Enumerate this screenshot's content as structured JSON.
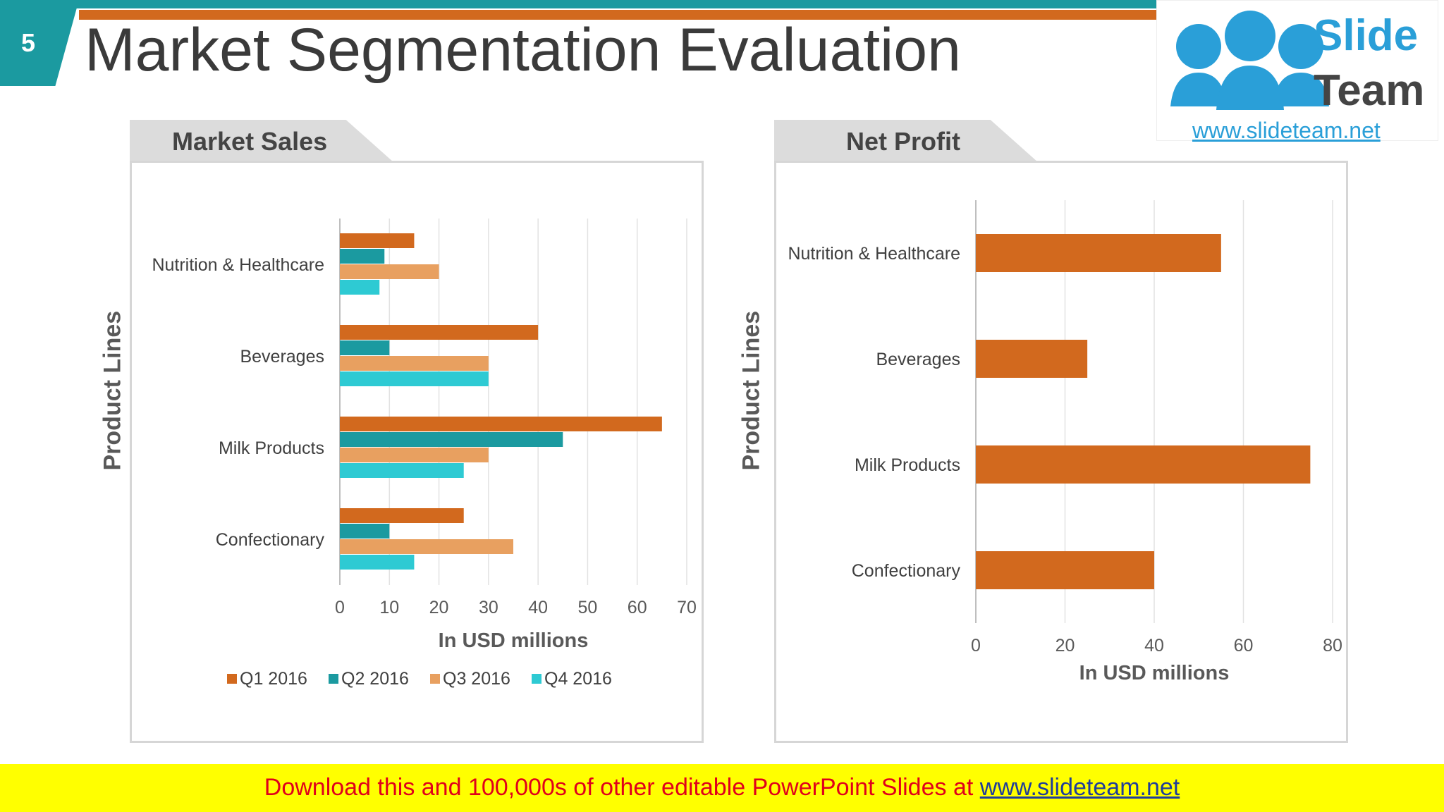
{
  "slide": {
    "number": "5",
    "title": "Market Segmentation Evaluation"
  },
  "logo": {
    "line1": "Slide",
    "line2": "Team",
    "url": "www.slideteam.net"
  },
  "colors": {
    "teal": "#1b9aa0",
    "orange": "#d2691e",
    "q1": "#d2691e",
    "q2": "#1b9aa0",
    "q3": "#e8a060",
    "q4": "#2ecad3"
  },
  "chart_data": [
    {
      "type": "bar",
      "orientation": "horizontal",
      "title": "Market Sales",
      "ylabel": "Product Lines",
      "xlabel": "In USD millions",
      "categories": [
        "Nutrition & Healthcare",
        "Beverages",
        "Milk Products",
        "Confectionary"
      ],
      "series": [
        {
          "name": "Q1 2016",
          "values": [
            15,
            40,
            65,
            25
          ]
        },
        {
          "name": "Q2 2016",
          "values": [
            9,
            10,
            45,
            10
          ]
        },
        {
          "name": "Q3 2016",
          "values": [
            20,
            30,
            30,
            35
          ]
        },
        {
          "name": "Q4 2016",
          "values": [
            8,
            30,
            25,
            15
          ]
        }
      ],
      "xlim": [
        0,
        70
      ],
      "xticks": [
        0,
        10,
        20,
        30,
        40,
        50,
        60,
        70
      ],
      "legend": "bottom"
    },
    {
      "type": "bar",
      "orientation": "horizontal",
      "title": "Net Profit",
      "ylabel": "Product Lines",
      "xlabel": "In USD millions",
      "categories": [
        "Nutrition & Healthcare",
        "Beverages",
        "Milk Products",
        "Confectionary"
      ],
      "values": [
        55,
        25,
        75,
        40
      ],
      "xlim": [
        0,
        80
      ],
      "xticks": [
        0,
        20,
        40,
        60,
        80
      ]
    }
  ],
  "footer": {
    "text": "Download this and 100,000s of other editable PowerPoint Slides at ",
    "link": "www.slideteam.net"
  }
}
